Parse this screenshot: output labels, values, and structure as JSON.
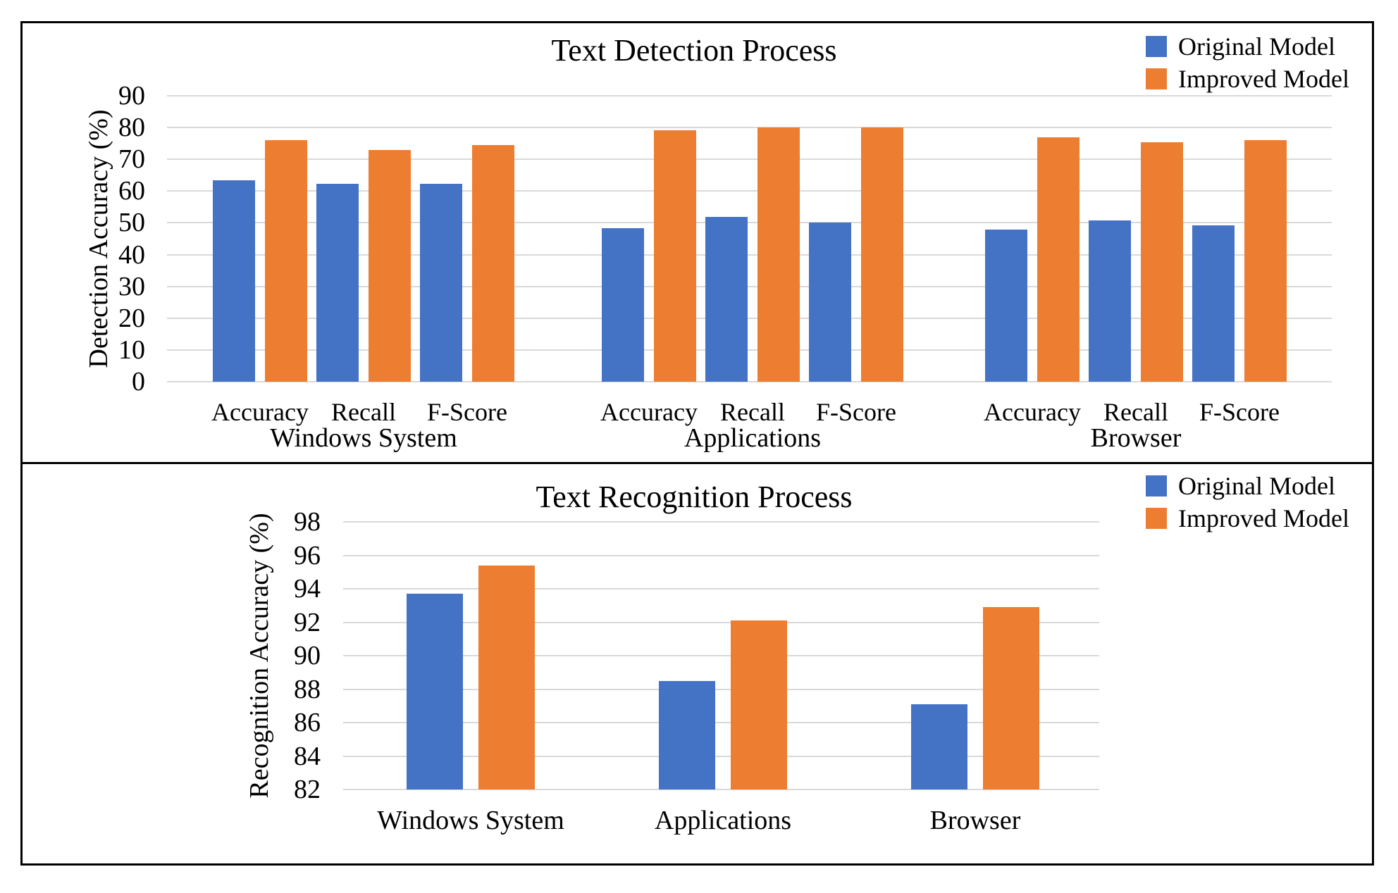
{
  "figure": {
    "background": "#ffffff",
    "border_color": "#000000"
  },
  "chart_data": [
    {
      "id": "detection",
      "type": "bar",
      "title": "Text Detection Process",
      "ylabel": "Detection Accuracy  (%)",
      "ylim": [
        0,
        90
      ],
      "yticks": [
        0,
        10,
        20,
        30,
        40,
        50,
        60,
        70,
        80,
        90
      ],
      "grid": true,
      "gridline_color": "#d9d9d9",
      "legend_position": "top-right",
      "groups": [
        {
          "label": "Windows System",
          "categories": [
            "Accuracy",
            "Recall",
            "F-Score"
          ]
        },
        {
          "label": "Applications",
          "categories": [
            "Accuracy",
            "Recall",
            "F-Score"
          ]
        },
        {
          "label": "Browser",
          "categories": [
            "Accuracy",
            "Recall",
            "F-Score"
          ]
        }
      ],
      "series": [
        {
          "name": "Original Model",
          "color": "#4472c4",
          "values": [
            [
              63.3,
              62.4,
              62.4
            ],
            [
              48.4,
              51.9,
              50.0
            ],
            [
              47.8,
              50.8,
              49.2
            ]
          ]
        },
        {
          "name": "Improved Model",
          "color": "#ed7d31",
          "values": [
            [
              76.0,
              73.0,
              74.5
            ],
            [
              79.2,
              80.0,
              80.0
            ],
            [
              77.0,
              75.3,
              76.0
            ]
          ]
        }
      ]
    },
    {
      "id": "recognition",
      "type": "bar",
      "title": "Text Recognition Process",
      "ylabel": "Recognition Accuracy  (%)",
      "ylim": [
        82,
        98
      ],
      "yticks": [
        82,
        84,
        86,
        88,
        90,
        92,
        94,
        96,
        98
      ],
      "grid": true,
      "gridline_color": "#d9d9d9",
      "legend_position": "top-right",
      "groups": [
        {
          "label": "Windows System",
          "categories": []
        },
        {
          "label": "Applications",
          "categories": []
        },
        {
          "label": "Browser",
          "categories": []
        }
      ],
      "series": [
        {
          "name": "Original Model",
          "color": "#4472c4",
          "values": [
            [
              93.7
            ],
            [
              88.5
            ],
            [
              87.1
            ]
          ]
        },
        {
          "name": "Improved Model",
          "color": "#ed7d31",
          "values": [
            [
              95.4
            ],
            [
              92.1
            ],
            [
              92.9
            ]
          ]
        }
      ]
    }
  ]
}
